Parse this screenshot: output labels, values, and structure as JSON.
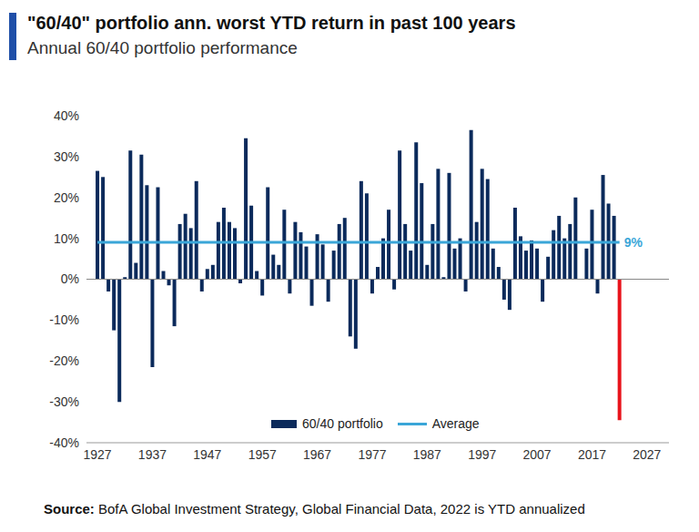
{
  "chart_data": {
    "type": "bar",
    "title": "\"60/40\" portfolio ann. worst YTD return in past 100 years",
    "subtitle": "Annual 60/40 portfolio performance",
    "source": "Source: BofA Global Investment Strategy, Global Financial Data, 2022 is YTD annualized",
    "x": [
      1927,
      1928,
      1929,
      1930,
      1931,
      1932,
      1933,
      1934,
      1935,
      1936,
      1937,
      1938,
      1939,
      1940,
      1941,
      1942,
      1943,
      1944,
      1945,
      1946,
      1947,
      1948,
      1949,
      1950,
      1951,
      1952,
      1953,
      1954,
      1955,
      1956,
      1957,
      1958,
      1959,
      1960,
      1961,
      1962,
      1963,
      1964,
      1965,
      1966,
      1967,
      1968,
      1969,
      1970,
      1971,
      1972,
      1973,
      1974,
      1975,
      1976,
      1977,
      1978,
      1979,
      1980,
      1981,
      1982,
      1983,
      1984,
      1985,
      1986,
      1987,
      1988,
      1989,
      1990,
      1991,
      1992,
      1993,
      1994,
      1995,
      1996,
      1997,
      1998,
      1999,
      2000,
      2001,
      2002,
      2003,
      2004,
      2005,
      2006,
      2007,
      2008,
      2009,
      2010,
      2011,
      2012,
      2013,
      2014,
      2015,
      2016,
      2017,
      2018,
      2019,
      2020,
      2021,
      2022
    ],
    "series": [
      {
        "name": "60/40 portfolio",
        "color": "#0b2a5b",
        "values": [
          26.5,
          25,
          -3,
          -12.5,
          -30,
          0.5,
          31.5,
          4,
          30.5,
          23,
          -21.5,
          22.5,
          2,
          -1.5,
          -11.5,
          13.5,
          16,
          12.5,
          24,
          -3,
          2.5,
          3.5,
          14,
          17.5,
          14,
          12.5,
          -1,
          34.5,
          18,
          2,
          -4,
          22.5,
          6,
          3.5,
          17,
          -3.5,
          14,
          11.5,
          8,
          -6.5,
          11,
          8.5,
          -5.5,
          7,
          13.5,
          15,
          -14,
          -17,
          24,
          21,
          -3.5,
          3,
          10,
          17,
          -2.5,
          31.5,
          13.5,
          7,
          33.5,
          23.5,
          3.5,
          13.5,
          27,
          0.5,
          26,
          7.5,
          10,
          -3,
          36.5,
          14,
          27,
          24.5,
          7.5,
          3,
          -5,
          -7.5,
          17.5,
          10.5,
          7,
          9.5,
          7.5,
          -5.5,
          5.5,
          12,
          15.5,
          10,
          13.5,
          20,
          0,
          7.5,
          17,
          -3.5,
          25.5,
          18.5,
          15.5,
          -34.5
        ],
        "colors": [
          "#0b2a5b",
          "#0b2a5b",
          "#0b2a5b",
          "#0b2a5b",
          "#0b2a5b",
          "#0b2a5b",
          "#0b2a5b",
          "#0b2a5b",
          "#0b2a5b",
          "#0b2a5b",
          "#0b2a5b",
          "#0b2a5b",
          "#0b2a5b",
          "#0b2a5b",
          "#0b2a5b",
          "#0b2a5b",
          "#0b2a5b",
          "#0b2a5b",
          "#0b2a5b",
          "#0b2a5b",
          "#0b2a5b",
          "#0b2a5b",
          "#0b2a5b",
          "#0b2a5b",
          "#0b2a5b",
          "#0b2a5b",
          "#0b2a5b",
          "#0b2a5b",
          "#0b2a5b",
          "#0b2a5b",
          "#0b2a5b",
          "#0b2a5b",
          "#0b2a5b",
          "#0b2a5b",
          "#0b2a5b",
          "#0b2a5b",
          "#0b2a5b",
          "#0b2a5b",
          "#0b2a5b",
          "#0b2a5b",
          "#0b2a5b",
          "#0b2a5b",
          "#0b2a5b",
          "#0b2a5b",
          "#0b2a5b",
          "#0b2a5b",
          "#0b2a5b",
          "#0b2a5b",
          "#0b2a5b",
          "#0b2a5b",
          "#0b2a5b",
          "#0b2a5b",
          "#0b2a5b",
          "#0b2a5b",
          "#0b2a5b",
          "#0b2a5b",
          "#0b2a5b",
          "#0b2a5b",
          "#0b2a5b",
          "#0b2a5b",
          "#0b2a5b",
          "#0b2a5b",
          "#0b2a5b",
          "#0b2a5b",
          "#0b2a5b",
          "#0b2a5b",
          "#0b2a5b",
          "#0b2a5b",
          "#0b2a5b",
          "#0b2a5b",
          "#0b2a5b",
          "#0b2a5b",
          "#0b2a5b",
          "#0b2a5b",
          "#0b2a5b",
          "#0b2a5b",
          "#0b2a5b",
          "#0b2a5b",
          "#0b2a5b",
          "#0b2a5b",
          "#0b2a5b",
          "#0b2a5b",
          "#0b2a5b",
          "#0b2a5b",
          "#0b2a5b",
          "#0b2a5b",
          "#0b2a5b",
          "#0b2a5b",
          "#0b2a5b",
          "#0b2a5b",
          "#0b2a5b",
          "#0b2a5b",
          "#0b2a5b",
          "#0b2a5b",
          "#0b2a5b",
          "#e8141c"
        ]
      }
    ],
    "average": {
      "name": "Average",
      "value": 9,
      "label": "9%",
      "color": "#3aa6d8"
    },
    "xlim": [
      1925,
      2031
    ],
    "xticks": [
      1927,
      1937,
      1947,
      1957,
      1967,
      1977,
      1987,
      1997,
      2007,
      2017,
      2027
    ],
    "ylim": [
      -40,
      40
    ],
    "yticks": [
      {
        "value": -40,
        "label": "-40%"
      },
      {
        "value": -30,
        "label": "-30%"
      },
      {
        "value": -20,
        "label": "-20%"
      },
      {
        "value": -10,
        "label": "-10%"
      },
      {
        "value": 0,
        "label": "0%"
      },
      {
        "value": 10,
        "label": "10%"
      },
      {
        "value": 20,
        "label": "20%"
      },
      {
        "value": 30,
        "label": "30%"
      },
      {
        "value": 40,
        "label": "40%"
      }
    ],
    "grid": false,
    "legend": "bottom"
  }
}
